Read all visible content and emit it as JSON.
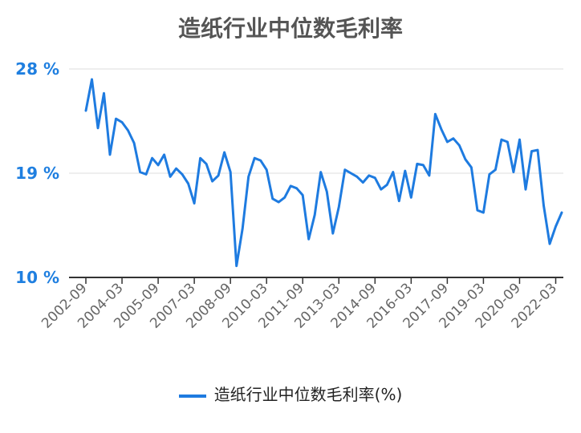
{
  "chart_data": {
    "type": "line",
    "title": "造纸行业中位数毛利率",
    "xlabel": "",
    "ylabel": "",
    "ylim": [
      10,
      28
    ],
    "y_ticks": [
      "28 %",
      "19 %",
      "10 %"
    ],
    "y_tick_values": [
      28,
      19,
      10
    ],
    "x_tick_labels": [
      "2002-09",
      "2004-03",
      "2005-09",
      "2007-03",
      "2008-09",
      "2010-03",
      "2011-09",
      "2013-03",
      "2014-09",
      "2016-03",
      "2017-09",
      "2019-03",
      "2020-09",
      "2022-03"
    ],
    "legend_position": "bottom",
    "grid": true,
    "color": "#1e7be0",
    "series": [
      {
        "name": "造纸行业中位数毛利率(%)",
        "values": [
          24.4,
          27.1,
          22.9,
          25.9,
          20.6,
          23.7,
          23.4,
          22.7,
          21.6,
          19.1,
          18.9,
          20.3,
          19.7,
          20.6,
          18.7,
          19.4,
          18.9,
          18.1,
          16.4,
          20.3,
          19.8,
          18.3,
          18.8,
          20.8,
          19.1,
          11.0,
          14.2,
          18.7,
          20.3,
          20.1,
          19.3,
          16.8,
          16.5,
          16.9,
          17.9,
          17.7,
          17.1,
          13.3,
          15.4,
          19.1,
          17.4,
          13.8,
          16.1,
          19.3,
          19.0,
          18.7,
          18.2,
          18.8,
          18.6,
          17.6,
          18.0,
          19.1,
          16.6,
          19.2,
          16.9,
          19.8,
          19.7,
          18.8,
          24.1,
          22.8,
          21.7,
          22.0,
          21.4,
          20.2,
          19.5,
          15.8,
          15.6,
          18.9,
          19.3,
          21.9,
          21.7,
          19.1,
          21.9,
          17.6,
          20.9,
          21.0,
          16.2,
          12.9,
          14.4,
          15.6
        ]
      }
    ]
  }
}
